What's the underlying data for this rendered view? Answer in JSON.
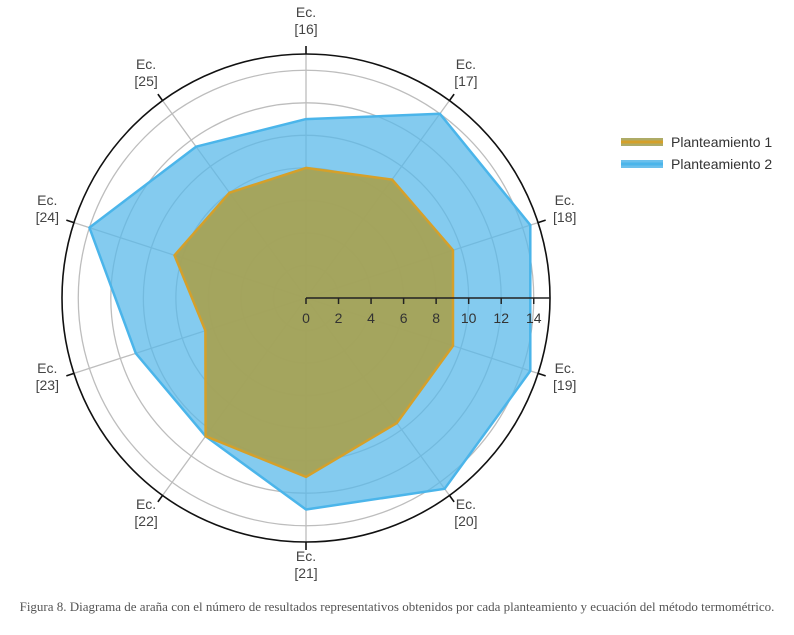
{
  "chart_data": {
    "type": "radar",
    "axes": [
      {
        "line1": "Ec.",
        "line2": "[16]"
      },
      {
        "line1": "Ec.",
        "line2": "[17]"
      },
      {
        "line1": "Ec.",
        "line2": "[18]"
      },
      {
        "line1": "Ec.",
        "line2": "[19]"
      },
      {
        "line1": "Ec.",
        "line2": "[20]"
      },
      {
        "line1": "Ec.",
        "line2": "[21]"
      },
      {
        "line1": "Ec.",
        "line2": "[22]"
      },
      {
        "line1": "Ec.",
        "line2": "[23]"
      },
      {
        "line1": "Ec.",
        "line2": "[24]"
      },
      {
        "line1": "Ec.",
        "line2": "[25]"
      }
    ],
    "r_ticks": [
      0,
      2,
      4,
      6,
      8,
      10,
      12,
      14
    ],
    "r_range": [
      0,
      15
    ],
    "grid": true,
    "legend_position": "right",
    "series": [
      {
        "name": "Planteamiento 1",
        "values": [
          8,
          9,
          9.5,
          9.5,
          9.5,
          11,
          10.5,
          6.5,
          8.5,
          8
        ],
        "line_color": "#D5A02A",
        "fill_color": "#A5A255"
      },
      {
        "name": "Planteamiento 2",
        "values": [
          11,
          14,
          14.5,
          14.5,
          14.5,
          13,
          10.5,
          11,
          14,
          11.5
        ],
        "line_color": "#4BB5EA",
        "fill_color": "#5BB9EA"
      }
    ]
  },
  "caption": "Figura 8. Diagrama de araña con el número de resultados representativos obtenidos por cada planteamiento y ecuación del método termométrico."
}
